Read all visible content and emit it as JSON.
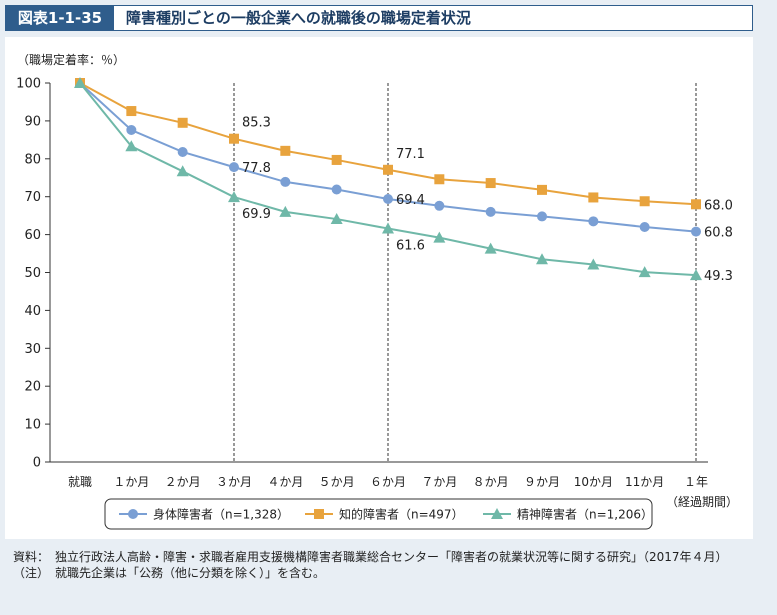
{
  "header": {
    "figure_label": "図表1-1-35",
    "title": "障害種別ごとの一般企業への就職後の職場定着状況"
  },
  "notes": [
    {
      "key": "資料：",
      "text": "独立行政法人高齢・障害・求職者雇用支援機構障害者職業総合センター「障害者の就業状況等に関する研究」（2017年４月）"
    },
    {
      "key": "（注）",
      "text": "就職先企業は「公務（他に分類を除く）」を含む。"
    }
  ],
  "chart_data": {
    "type": "line",
    "ylabel": "（職場定着率：％）",
    "xlabel": "（経過期間）",
    "ylim": [
      0,
      100
    ],
    "yticks": [
      0,
      10,
      20,
      30,
      40,
      50,
      60,
      70,
      80,
      90,
      100
    ],
    "categories": [
      "就職",
      "１か月",
      "２か月",
      "３か月",
      "４か月",
      "５か月",
      "６か月",
      "７か月",
      "８か月",
      "９か月",
      "10か月",
      "11か月",
      "１年"
    ],
    "reference_lines_at": [
      "３か月",
      "６か月",
      "１年"
    ],
    "grid": false,
    "legend_position": "bottom",
    "series": [
      {
        "name": "身体障害者（n=1,328）",
        "color": "#7a9fd4",
        "marker": "circle",
        "values": [
          100,
          87.6,
          81.8,
          77.8,
          73.9,
          71.9,
          69.4,
          67.6,
          66.0,
          64.8,
          63.5,
          62.0,
          60.8
        ],
        "labels": [
          {
            "index": 3,
            "text": "77.8",
            "pos": "right"
          },
          {
            "index": 6,
            "text": "69.4",
            "pos": "right"
          },
          {
            "index": 12,
            "text": "60.8",
            "pos": "right"
          }
        ]
      },
      {
        "name": "知的障害者（n=497）",
        "color": "#e8a33d",
        "marker": "square",
        "values": [
          100,
          92.6,
          89.5,
          85.3,
          82.1,
          79.7,
          77.1,
          74.6,
          73.6,
          71.8,
          69.8,
          68.8,
          68.0
        ],
        "labels": [
          {
            "index": 3,
            "text": "85.3",
            "pos": "above-right"
          },
          {
            "index": 6,
            "text": "77.1",
            "pos": "above-right"
          },
          {
            "index": 12,
            "text": "68.0",
            "pos": "right"
          }
        ]
      },
      {
        "name": "精神障害者（n=1,206）",
        "color": "#6fb8a8",
        "marker": "triangle",
        "values": [
          100,
          83.3,
          76.7,
          69.9,
          66.0,
          64.1,
          61.6,
          59.2,
          56.3,
          53.5,
          52.1,
          50.1,
          49.3
        ],
        "labels": [
          {
            "index": 3,
            "text": "69.9",
            "pos": "below-right"
          },
          {
            "index": 6,
            "text": "61.6",
            "pos": "below-right"
          },
          {
            "index": 12,
            "text": "49.3",
            "pos": "right"
          }
        ]
      }
    ]
  }
}
